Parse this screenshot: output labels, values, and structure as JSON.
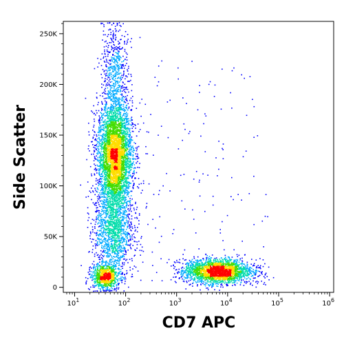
{
  "chart_data": {
    "type": "scatter",
    "subtype": "flow-cytometry-density-dot-plot",
    "xlabel": "CD7 APC",
    "ylabel": "Side Scatter",
    "x_scale": "log",
    "x_range": [
      6,
      1200000
    ],
    "y_range": [
      -5000,
      262144
    ],
    "x_ticks": [
      {
        "value": 10,
        "base": "10",
        "exp": "1"
      },
      {
        "value": 100,
        "base": "10",
        "exp": "2"
      },
      {
        "value": 1000,
        "base": "10",
        "exp": "3"
      },
      {
        "value": 10000,
        "base": "10",
        "exp": "4"
      },
      {
        "value": 100000,
        "base": "10",
        "exp": "5"
      },
      {
        "value": 1000000,
        "base": "10",
        "exp": "6"
      }
    ],
    "y_ticks": [
      {
        "value": 0,
        "label": "0"
      },
      {
        "value": 50000,
        "label": "50K"
      },
      {
        "value": 100000,
        "label": "100K"
      },
      {
        "value": 150000,
        "label": "150K"
      },
      {
        "value": 200000,
        "label": "200K"
      },
      {
        "value": 250000,
        "label": "250K"
      }
    ],
    "color_scale": [
      "#0000ff",
      "#00aaff",
      "#00ddaa",
      "#44dd00",
      "#ffdd00",
      "#ff0000"
    ],
    "populations": [
      {
        "description": "CD7-negative, high side scatter",
        "x_center_log10": 1.78,
        "x_sd_log10": 0.17,
        "y_center": 130000,
        "y_sd": 27000,
        "count": 4200
      },
      {
        "description": "CD7-negative, low side scatter",
        "x_center_log10": 1.6,
        "x_sd_log10": 0.14,
        "y_center": 11000,
        "y_sd": 6000,
        "count": 900
      },
      {
        "description": "CD7-negative, intermediate side scatter bridge",
        "x_center_log10": 1.75,
        "x_sd_log10": 0.19,
        "y_center": 55000,
        "y_sd": 22000,
        "count": 1400
      },
      {
        "description": "CD7-negative, upper tail",
        "x_center_log10": 1.78,
        "x_sd_log10": 0.13,
        "y_center": 215000,
        "y_sd": 25000,
        "count": 550
      },
      {
        "description": "CD7-positive, low side scatter",
        "x_center_log10": 3.8,
        "x_sd_log10": 0.33,
        "y_center": 16000,
        "y_sd": 6000,
        "count": 2400
      }
    ]
  }
}
